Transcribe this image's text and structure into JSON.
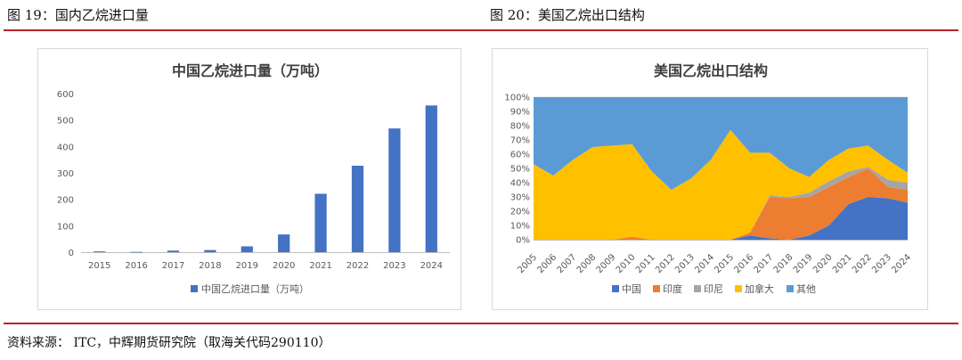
{
  "figures": {
    "left_label": "图 19：国内乙烷进口量",
    "right_label": "图 20：美国乙烷出口结构"
  },
  "source": "资料来源： ITC，中辉期货研究院（取海关代码290110）",
  "chart_data": [
    {
      "type": "bar",
      "title": "中国乙烷进口量（万吨）",
      "categories": [
        "2015",
        "2016",
        "2017",
        "2018",
        "2019",
        "2020",
        "2021",
        "2022",
        "2023",
        "2024"
      ],
      "series": [
        {
          "name": "中国乙烷进口量（万吨）",
          "values": [
            3,
            1,
            6,
            8,
            22,
            67,
            221,
            327,
            468,
            555
          ],
          "color": "#4472c4"
        }
      ],
      "ylim": [
        0,
        600
      ],
      "yticks": [
        "0",
        "100",
        "200",
        "300",
        "400",
        "500",
        "600"
      ],
      "grid": false,
      "legend": "bottom"
    },
    {
      "type": "area",
      "title": "美国乙烷出口结构",
      "categories": [
        "2005",
        "2006",
        "2007",
        "2008",
        "2009",
        "2010",
        "2011",
        "2012",
        "2013",
        "2014",
        "2015",
        "2016",
        "2017",
        "2018",
        "2019",
        "2020",
        "2021",
        "2022",
        "2023",
        "2024"
      ],
      "stacked": true,
      "series": [
        {
          "name": "中国",
          "color": "#4472c4",
          "values": [
            0,
            0,
            0,
            0,
            0,
            0,
            0,
            0,
            0,
            0,
            0,
            3,
            1,
            0,
            3,
            10,
            25,
            30,
            29,
            26
          ]
        },
        {
          "name": "印度",
          "color": "#ed7d31",
          "values": [
            0,
            0,
            0,
            0,
            0,
            2,
            0,
            0,
            0,
            0,
            0,
            2,
            29,
            29,
            27,
            27,
            19,
            20,
            8,
            9
          ]
        },
        {
          "name": "印尼",
          "color": "#a5a5a5",
          "values": [
            0,
            0,
            0,
            0,
            0,
            0,
            0,
            0,
            0,
            0,
            0,
            0,
            1,
            1,
            3,
            4,
            4,
            1,
            5,
            5
          ]
        },
        {
          "name": "加拿大",
          "color": "#ffc000",
          "values": [
            53,
            45,
            56,
            65,
            66,
            65,
            48,
            35,
            43,
            56,
            77,
            56,
            30,
            20,
            11,
            15,
            16,
            15,
            14,
            7
          ]
        },
        {
          "name": "其他",
          "color": "#5b9bd5",
          "values": [
            47,
            55,
            44,
            35,
            34,
            33,
            52,
            65,
            57,
            44,
            23,
            39,
            39,
            50,
            56,
            44,
            36,
            34,
            44,
            53
          ]
        }
      ],
      "ylim": [
        0,
        100
      ],
      "yticks": [
        "0%",
        "10%",
        "20%",
        "30%",
        "40%",
        "50%",
        "60%",
        "70%",
        "80%",
        "90%",
        "100%"
      ],
      "grid": true,
      "legend": "bottom"
    }
  ]
}
